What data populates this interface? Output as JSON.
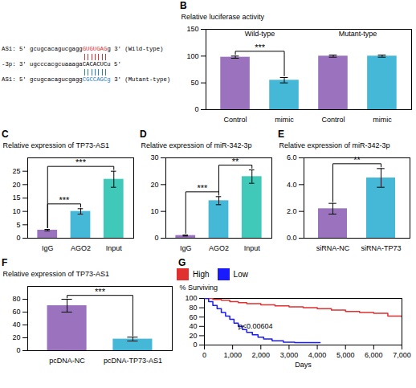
{
  "chart_data": [
    {
      "type": "text",
      "lines": [
        {
          "segments": [
            {
              "text": "AS1: 5' gcugcacagucgagg"
            },
            {
              "text": "GUGUGAG",
              "color": "#e03030"
            },
            {
              "text": "g 3' (Wild-type)"
            }
          ]
        },
        {
          "type": "ticks",
          "color": "#e03030",
          "count": 7
        },
        {
          "segments": [
            {
              "text": "-3p: 3' ugcccacgcuaaagaCACACUCu 5'"
            }
          ]
        },
        {
          "type": "ticks",
          "color": "#2980b9",
          "count": 7
        },
        {
          "segments": [
            {
              "text": "AS1: 5' gcugcacagucgagg"
            },
            {
              "text": "CGCCAGCg",
              "color": "#2980b9"
            },
            {
              "text": " 3' (Mutant-type)"
            }
          ]
        }
      ]
    },
    {
      "type": "bar",
      "title": "B",
      "ylabel": "Relative luciferase activity",
      "categories": [
        "Control",
        "mimic",
        "Control",
        "mimic"
      ],
      "values": [
        98,
        55,
        100,
        100
      ],
      "errors": [
        2,
        5,
        2,
        2
      ],
      "colors": [
        "#9b72be",
        "#45b8d8",
        "#9b72be",
        "#45b8d8"
      ],
      "ylim": [
        0,
        150
      ],
      "yticks": [
        0,
        50,
        100,
        150
      ],
      "groups": [
        {
          "label": "Wild-type",
          "between": [
            0,
            1
          ]
        },
        {
          "label": "Mutant-type",
          "between": [
            2,
            3
          ]
        }
      ],
      "annotations": [
        {
          "text": "***",
          "between": [
            0,
            1
          ]
        }
      ]
    },
    {
      "type": "bar",
      "title": "C",
      "ylabel": "Relative expression of TP73-AS1",
      "categories": [
        "IgG",
        "AGO2",
        "Input"
      ],
      "values": [
        3,
        10,
        22
      ],
      "errors": [
        0.3,
        1.0,
        3.0
      ],
      "colors": [
        "#9b72be",
        "#45b8d8",
        "#40c8b8"
      ],
      "ylim": [
        0,
        30
      ],
      "yticks": [
        0,
        5,
        10,
        15,
        20,
        25
      ],
      "annotations": [
        {
          "text": "***",
          "between": [
            0,
            1
          ]
        },
        {
          "text": "***",
          "between": [
            0,
            2
          ]
        }
      ]
    },
    {
      "type": "bar",
      "title": "D",
      "ylabel": "Relative expression of miR-342-3p",
      "categories": [
        "IgG",
        "AGO2",
        "Input"
      ],
      "values": [
        1,
        14,
        23
      ],
      "errors": [
        0.2,
        1.5,
        2.5
      ],
      "colors": [
        "#9b72be",
        "#45b8d8",
        "#40c8b8"
      ],
      "ylim": [
        0,
        30
      ],
      "yticks": [
        0,
        10,
        20,
        30
      ],
      "annotations": [
        {
          "text": "***",
          "between": [
            0,
            1
          ]
        },
        {
          "text": "**",
          "between": [
            1,
            2
          ]
        }
      ]
    },
    {
      "type": "bar",
      "title": "E",
      "ylabel": "Relative expression of miR-342-3p",
      "categories": [
        "siRNA-NC",
        "siRNA-TP73"
      ],
      "values": [
        2.2,
        4.5
      ],
      "errors": [
        0.4,
        0.7
      ],
      "colors": [
        "#9b72be",
        "#45b8d8"
      ],
      "ylim": [
        0,
        6
      ],
      "yticks": [
        0,
        2,
        4,
        6
      ],
      "annotations": [
        {
          "text": "**",
          "between": [
            0,
            1
          ]
        }
      ]
    },
    {
      "type": "bar",
      "title": "F",
      "ylabel": "Relative expression of TP73-AS1",
      "categories": [
        "pcDNA-NC",
        "pcDNA-TP73-AS1"
      ],
      "values": [
        70,
        18
      ],
      "errors": [
        10,
        3
      ],
      "colors": [
        "#9b72be",
        "#45b8d8"
      ],
      "ylim": [
        0,
        100
      ],
      "yticks": [
        0,
        20,
        40,
        60,
        80
      ],
      "annotations": [
        {
          "text": "***",
          "between": [
            0,
            1
          ]
        }
      ]
    },
    {
      "type": "line",
      "title": "G",
      "xlabel": "Days",
      "ylabel": "% Surviving",
      "line_style": "step",
      "legend": "top",
      "series": [
        {
          "name": "High",
          "color": "#e03030",
          "x": [
            0,
            300,
            600,
            900,
            1200,
            1500,
            2000,
            2500,
            3000,
            3500,
            4000,
            4500,
            5000,
            5500,
            6000,
            6500,
            7000
          ],
          "values": [
            100,
            98,
            96,
            93,
            91,
            89,
            86,
            84,
            82,
            80,
            78,
            75,
            72,
            70,
            68,
            62,
            60
          ]
        },
        {
          "name": "Low",
          "color": "#1a1aff",
          "x": [
            0,
            150,
            300,
            450,
            600,
            750,
            900,
            1050,
            1200,
            1350,
            1500,
            1700,
            1900,
            2100,
            2400,
            2800,
            3200,
            4000,
            4100
          ],
          "values": [
            100,
            93,
            85,
            78,
            70,
            62,
            55,
            47,
            40,
            33,
            27,
            22,
            17,
            13,
            9,
            6,
            5,
            5,
            5
          ]
        }
      ],
      "xlim": [
        0,
        7000
      ],
      "ylim": [
        0,
        100
      ],
      "xticks": [
        0,
        1000,
        2000,
        3000,
        4000,
        5000,
        6000,
        7000
      ],
      "yticks": [
        0,
        20,
        40,
        60,
        80,
        100
      ],
      "annotations": [
        {
          "text": "p<0.00604",
          "x": 1200,
          "y": 35
        }
      ]
    }
  ]
}
